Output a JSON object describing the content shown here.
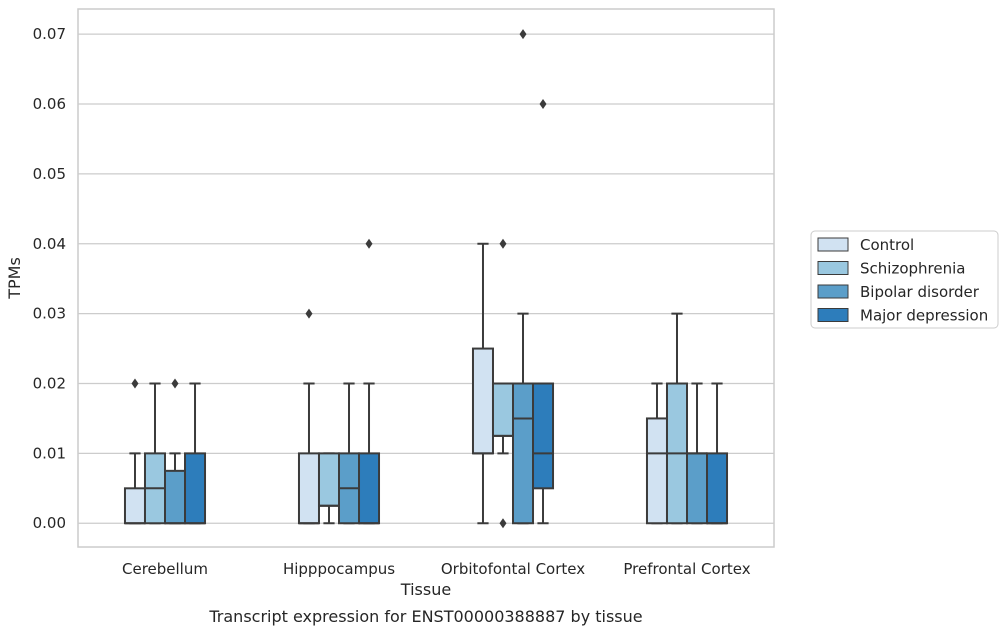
{
  "chart_data": {
    "type": "box",
    "caption": "Transcript expression for ENST00000388887 by tissue",
    "xlabel": "Tissue",
    "ylabel": "TPMs",
    "ylim": [
      -0.0034,
      0.0736
    ],
    "yticks": [
      0.0,
      0.01,
      0.02,
      0.03,
      0.04,
      0.05,
      0.06,
      0.07
    ],
    "ytick_labels": [
      "0.00",
      "0.01",
      "0.02",
      "0.03",
      "0.04",
      "0.05",
      "0.06",
      "0.07"
    ],
    "grid": "horizontal",
    "legend_position": "right",
    "categories": [
      "Cerebellum",
      "Hipppocampus",
      "Orbitofontal Cortex",
      "Prefrontal Cortex"
    ],
    "series": [
      {
        "name": "Control",
        "color": "#d1e2f2",
        "boxes": [
          {
            "whislo": 0.0,
            "q1": 0.0,
            "med": 0.0,
            "q3": 0.005,
            "whishi": 0.01,
            "fliers": [
              0.02
            ]
          },
          {
            "whislo": 0.0,
            "q1": 0.0,
            "med": 0.0,
            "q3": 0.01,
            "whishi": 0.02,
            "fliers": [
              0.03
            ]
          },
          {
            "whislo": 0.0,
            "q1": 0.01,
            "med": 0.01,
            "q3": 0.025,
            "whishi": 0.04,
            "fliers": []
          },
          {
            "whislo": 0.0,
            "q1": 0.0,
            "med": 0.01,
            "q3": 0.015,
            "whishi": 0.02,
            "fliers": []
          }
        ]
      },
      {
        "name": "Schizophrenia",
        "color": "#9ac8e0",
        "boxes": [
          {
            "whislo": 0.0,
            "q1": 0.0,
            "med": 0.005,
            "q3": 0.01,
            "whishi": 0.02,
            "fliers": []
          },
          {
            "whislo": 0.0,
            "q1": 0.0025,
            "med": 0.0025,
            "q3": 0.01,
            "whishi": 0.01,
            "fliers": []
          },
          {
            "whislo": 0.01,
            "q1": 0.0125,
            "med": 0.0125,
            "q3": 0.02,
            "whishi": 0.02,
            "fliers": [
              0.04,
              0.0
            ]
          },
          {
            "whislo": 0.0,
            "q1": 0.0,
            "med": 0.01,
            "q3": 0.02,
            "whishi": 0.03,
            "fliers": []
          }
        ]
      },
      {
        "name": "Bipolar disorder",
        "color": "#5b9ec9",
        "boxes": [
          {
            "whislo": 0.0,
            "q1": 0.0,
            "med": 0.0,
            "q3": 0.0075,
            "whishi": 0.01,
            "fliers": [
              0.02
            ]
          },
          {
            "whislo": 0.0,
            "q1": 0.0,
            "med": 0.005,
            "q3": 0.01,
            "whishi": 0.02,
            "fliers": []
          },
          {
            "whislo": 0.0,
            "q1": 0.0,
            "med": 0.015,
            "q3": 0.02,
            "whishi": 0.03,
            "fliers": [
              0.07
            ]
          },
          {
            "whislo": 0.0,
            "q1": 0.0,
            "med": 0.01,
            "q3": 0.01,
            "whishi": 0.02,
            "fliers": []
          }
        ]
      },
      {
        "name": "Major depression",
        "color": "#2d7dbb",
        "boxes": [
          {
            "whislo": 0.0,
            "q1": 0.0,
            "med": 0.0,
            "q3": 0.01,
            "whishi": 0.02,
            "fliers": []
          },
          {
            "whislo": 0.0,
            "q1": 0.0,
            "med": 0.0,
            "q3": 0.01,
            "whishi": 0.02,
            "fliers": [
              0.04
            ]
          },
          {
            "whislo": 0.0,
            "q1": 0.005,
            "med": 0.01,
            "q3": 0.02,
            "whishi": 0.02,
            "fliers": [
              0.06
            ]
          },
          {
            "whislo": 0.0,
            "q1": 0.0,
            "med": 0.0,
            "q3": 0.01,
            "whishi": 0.02,
            "fliers": []
          }
        ]
      }
    ]
  }
}
